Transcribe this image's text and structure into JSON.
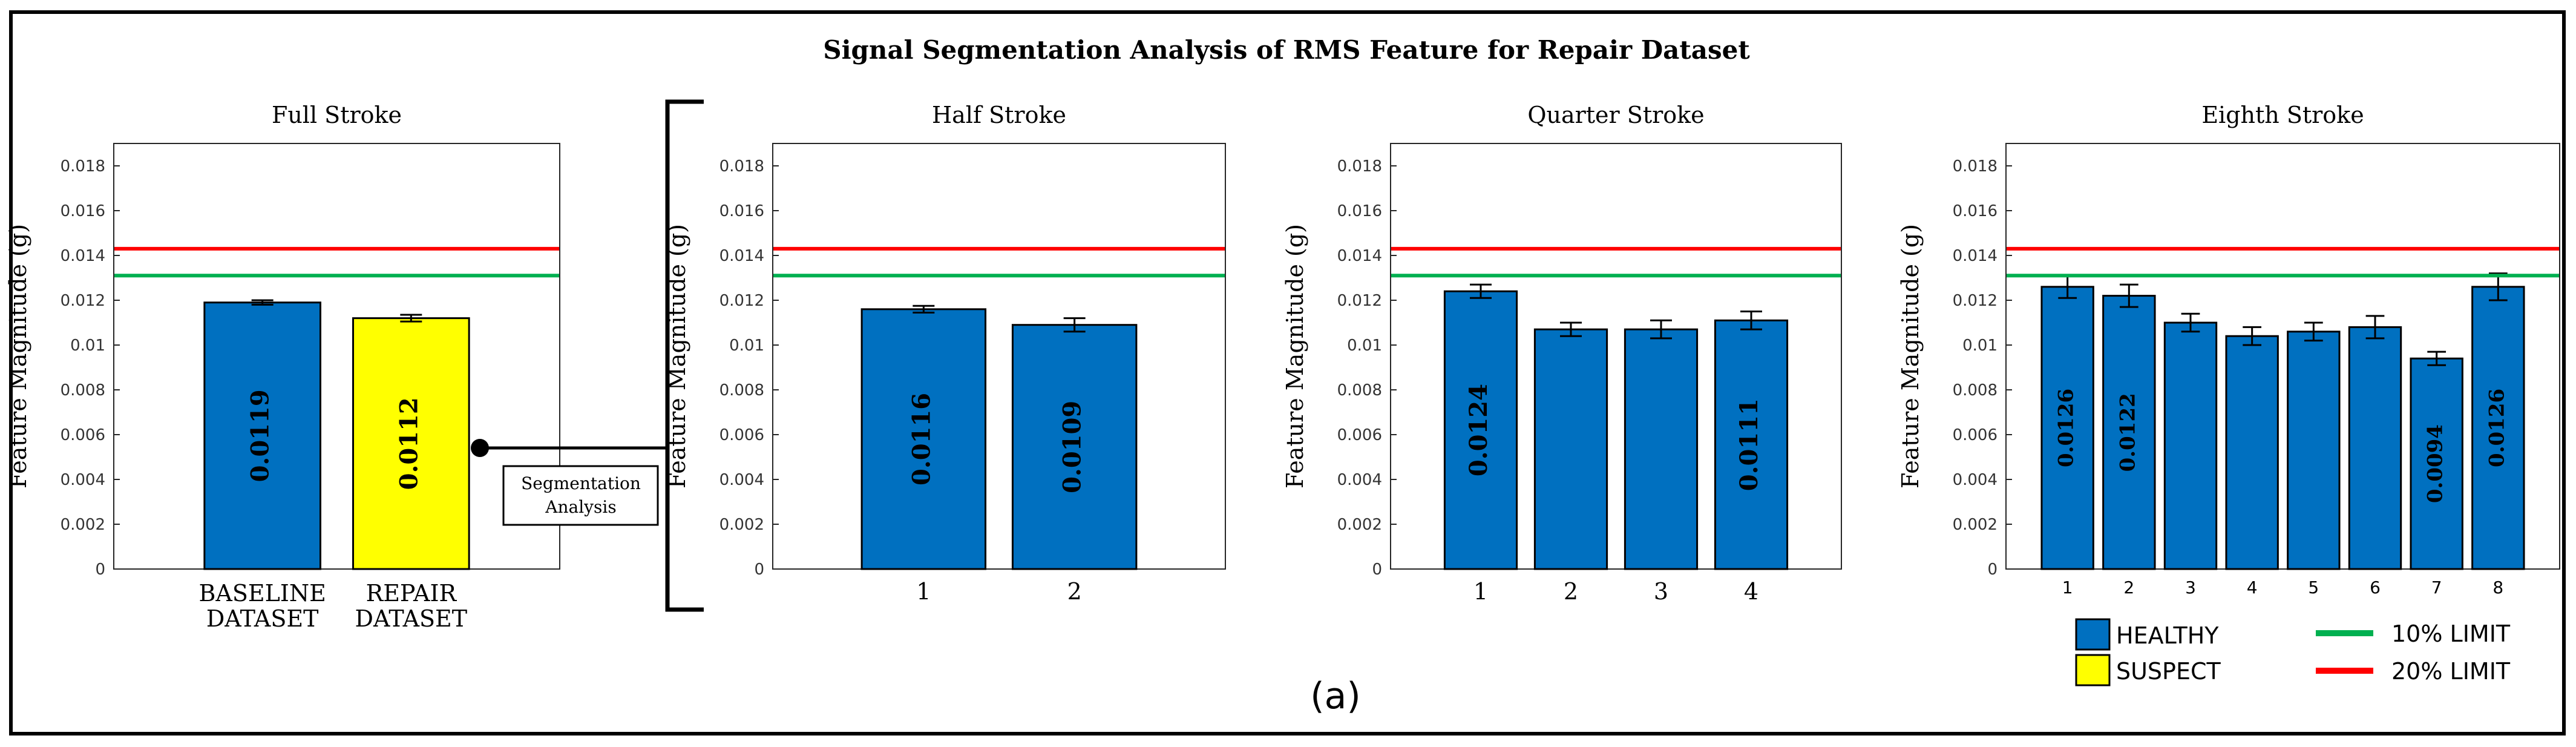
{
  "figure": {
    "title": "Signal Segmentation Analysis of RMS Feature for Repair Dataset",
    "caption": "(a)",
    "segmentation_label_line1": "Segmentation",
    "segmentation_label_line2": "Analysis"
  },
  "colors": {
    "healthy": "#0070c0",
    "suspect": "#ffff00",
    "limit10": "#00b050",
    "limit20": "#ff0000",
    "frame": "#000000"
  },
  "legend": {
    "healthy": "HEALTHY",
    "suspect": "SUSPECT",
    "limit10": "10% LIMIT",
    "limit20": "20% LIMIT"
  },
  "chart_data": [
    {
      "type": "bar",
      "title": "Full Stroke",
      "ylabel": "Feature Magnitude (g)",
      "ylim": [
        0,
        0.019
      ],
      "yticks": [
        "0",
        "0.002",
        "0.004",
        "0.006",
        "0.008",
        "0.01",
        "0.012",
        "0.014",
        "0.016",
        "0.018"
      ],
      "categories": [
        [
          "BASELINE",
          "DATASET"
        ],
        [
          "REPAIR",
          "DATASET"
        ]
      ],
      "values": [
        0.0119,
        0.0112
      ],
      "errors": [
        0.0001,
        0.00015
      ],
      "labels": [
        "0.0119",
        "0.0112"
      ],
      "bar_colors": [
        "healthy",
        "suspect"
      ],
      "limit10": 0.0131,
      "limit20": 0.0143
    },
    {
      "type": "bar",
      "title": "Half Stroke",
      "ylabel": "Feature Magnitude (g)",
      "ylim": [
        0,
        0.019
      ],
      "yticks": [
        "0",
        "0.002",
        "0.004",
        "0.006",
        "0.008",
        "0.01",
        "0.012",
        "0.014",
        "0.016",
        "0.018"
      ],
      "categories": [
        "1",
        "2"
      ],
      "values": [
        0.0116,
        0.0109
      ],
      "errors": [
        0.00015,
        0.0003
      ],
      "labels": [
        "0.0116",
        "0.0109"
      ],
      "bar_colors": [
        "healthy",
        "healthy"
      ],
      "limit10": 0.0131,
      "limit20": 0.0143
    },
    {
      "type": "bar",
      "title": "Quarter Stroke",
      "ylabel": "Feature Magnitude (g)",
      "ylim": [
        0,
        0.019
      ],
      "yticks": [
        "0",
        "0.002",
        "0.004",
        "0.006",
        "0.008",
        "0.01",
        "0.012",
        "0.014",
        "0.016",
        "0.018"
      ],
      "categories": [
        "1",
        "2",
        "3",
        "4"
      ],
      "values": [
        0.0124,
        0.0107,
        0.0107,
        0.0111
      ],
      "errors": [
        0.0003,
        0.0003,
        0.0004,
        0.0004
      ],
      "labels": [
        "0.0124",
        "",
        "",
        "0.0111"
      ],
      "bar_colors": [
        "healthy",
        "healthy",
        "healthy",
        "healthy"
      ],
      "limit10": 0.0131,
      "limit20": 0.0143
    },
    {
      "type": "bar",
      "title": "Eighth Stroke",
      "ylabel": "Feature Magnitude (g)",
      "ylim": [
        0,
        0.019
      ],
      "yticks": [
        "0",
        "0.002",
        "0.004",
        "0.006",
        "0.008",
        "0.01",
        "0.012",
        "0.014",
        "0.016",
        "0.018"
      ],
      "categories": [
        "1",
        "2",
        "3",
        "4",
        "5",
        "6",
        "7",
        "8"
      ],
      "values": [
        0.0126,
        0.0122,
        0.011,
        0.0104,
        0.0106,
        0.0108,
        0.0094,
        0.0126
      ],
      "errors": [
        0.0005,
        0.0005,
        0.0004,
        0.0004,
        0.0004,
        0.0005,
        0.0003,
        0.0006
      ],
      "labels": [
        "0.0126",
        "0.0122",
        "",
        "",
        "",
        "",
        "0.0094",
        "0.0126"
      ],
      "bar_colors": [
        "healthy",
        "healthy",
        "healthy",
        "healthy",
        "healthy",
        "healthy",
        "healthy",
        "healthy"
      ],
      "limit10": 0.0131,
      "limit20": 0.0143
    }
  ]
}
